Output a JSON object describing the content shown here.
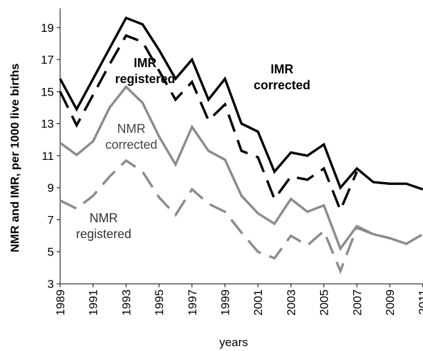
{
  "chart_data": {
    "type": "line",
    "x_label": "years",
    "y_label": "NMR and IMR, per 1000 live births",
    "x": [
      1989,
      1990,
      1991,
      1992,
      1993,
      1994,
      1995,
      1996,
      1997,
      1998,
      1999,
      2000,
      2001,
      2002,
      2003,
      2004,
      2005,
      2006,
      2007,
      2008,
      2009,
      2010,
      2011
    ],
    "series": [
      {
        "color": "#000000",
        "style": "solid",
        "values": [
          15.8,
          13.9,
          15.8,
          17.7,
          19.6,
          19.2,
          17.6,
          15.8,
          17.0,
          14.5,
          15.8,
          13.0,
          12.5,
          10.0,
          11.2,
          11.0,
          11.7,
          9.0,
          10.2,
          9.35,
          9.25,
          9.25,
          8.9
        ]
      },
      {
        "color": "#000000",
        "style": "dashed",
        "values": [
          15.0,
          12.9,
          14.8,
          16.7,
          18.5,
          18.1,
          16.3,
          14.5,
          15.6,
          13.2,
          14.2,
          11.3,
          10.9,
          8.3,
          9.7,
          9.5,
          10.2,
          7.6,
          10.0,
          null,
          null,
          null,
          null
        ]
      },
      {
        "color": "#8c8c8c",
        "style": "solid",
        "values": [
          11.8,
          11.05,
          11.9,
          14.0,
          15.3,
          14.3,
          12.2,
          10.45,
          12.8,
          11.3,
          10.75,
          8.5,
          7.4,
          6.75,
          8.3,
          7.5,
          7.9,
          5.2,
          6.6,
          6.1,
          5.85,
          5.5,
          null
        ]
      },
      {
        "color": "#8c8c8c",
        "style": "dashed",
        "values": [
          8.2,
          7.7,
          8.5,
          9.7,
          10.7,
          10.0,
          8.4,
          7.3,
          8.9,
          8.0,
          7.5,
          6.2,
          5.0,
          4.6,
          6.0,
          5.4,
          6.3,
          3.8,
          6.5,
          6.1,
          5.85,
          5.5,
          6.1
        ]
      }
    ],
    "annotations": [
      [
        "IMR",
        "registered"
      ],
      [
        "IMR",
        "corrected"
      ],
      [
        "NMR",
        "corrected"
      ],
      [
        "NMR",
        "registered"
      ]
    ],
    "xlim": [
      1989,
      2011
    ],
    "xticks": [
      1989,
      1991,
      1993,
      1995,
      1997,
      1999,
      2001,
      2003,
      2005,
      2007,
      2009,
      2011
    ],
    "ylim": [
      3,
      20.2
    ],
    "yticks": [
      3,
      5,
      7,
      9,
      11,
      13,
      15,
      17,
      19
    ]
  }
}
